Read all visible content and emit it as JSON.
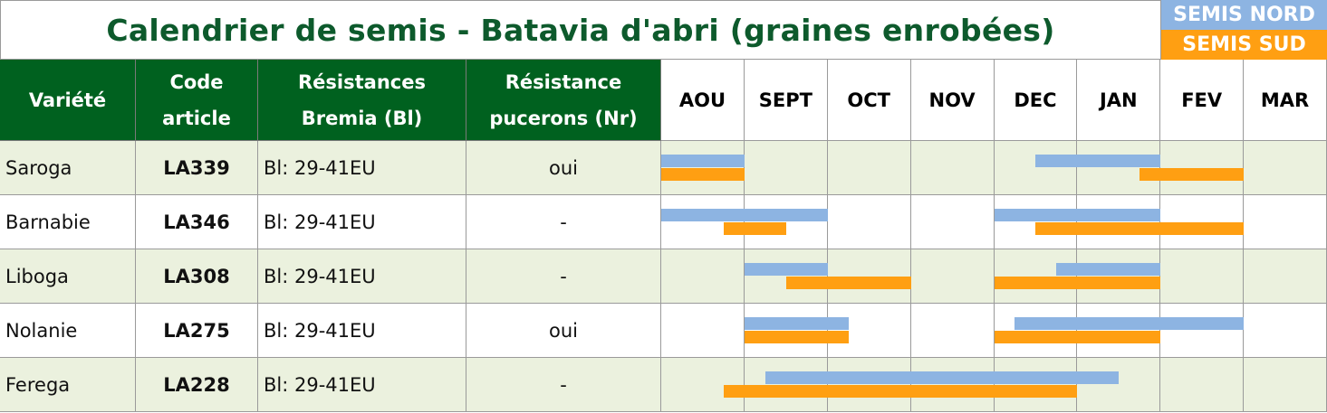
{
  "title": "Calendrier de semis - Batavia d'abri (graines enrobées)",
  "legend": [
    {
      "label": "SEMIS NORD",
      "color": "#8db4e2"
    },
    {
      "label": "SEMIS SUD",
      "color": "#ff9f12"
    }
  ],
  "columns": [
    [
      "Variété"
    ],
    [
      "Code",
      "article"
    ],
    [
      "Résistances",
      "Bremia (Bl)"
    ],
    [
      "Résistance",
      "pucerons (Nr)"
    ]
  ],
  "months": [
    "AOU",
    "SEPT",
    "OCT",
    "NOV",
    "DEC",
    "JAN",
    "FEV",
    "MAR"
  ],
  "rows": [
    {
      "variety": "Saroga",
      "code": "LA339",
      "bremia": "Bl: 29-41EU",
      "pucerons": "oui",
      "nord": [
        [
          0,
          1
        ],
        [
          4.5,
          6
        ]
      ],
      "sud": [
        [
          0,
          1
        ],
        [
          5.75,
          7
        ]
      ]
    },
    {
      "variety": "Barnabie",
      "code": "LA346",
      "bremia": "Bl: 29-41EU",
      "pucerons": "-",
      "nord": [
        [
          0,
          2
        ],
        [
          4,
          6
        ]
      ],
      "sud": [
        [
          0.75,
          1.5
        ],
        [
          4.5,
          7
        ]
      ]
    },
    {
      "variety": "Liboga",
      "code": "LA308",
      "bremia": "Bl: 29-41EU",
      "pucerons": "-",
      "nord": [
        [
          1,
          2
        ],
        [
          4.75,
          6
        ]
      ],
      "sud": [
        [
          1.5,
          3
        ],
        [
          4,
          6
        ]
      ]
    },
    {
      "variety": "Nolanie",
      "code": "LA275",
      "bremia": "Bl: 29-41EU",
      "pucerons": "oui",
      "nord": [
        [
          1,
          2.25
        ],
        [
          4.25,
          7
        ]
      ],
      "sud": [
        [
          1,
          2.25
        ],
        [
          4,
          6
        ]
      ]
    },
    {
      "variety": "Ferega",
      "code": "LA228",
      "bremia": "Bl: 29-41EU",
      "pucerons": "-",
      "nord": [
        [
          1.25,
          5.5
        ]
      ],
      "sud": [
        [
          0.75,
          5
        ]
      ]
    }
  ]
}
